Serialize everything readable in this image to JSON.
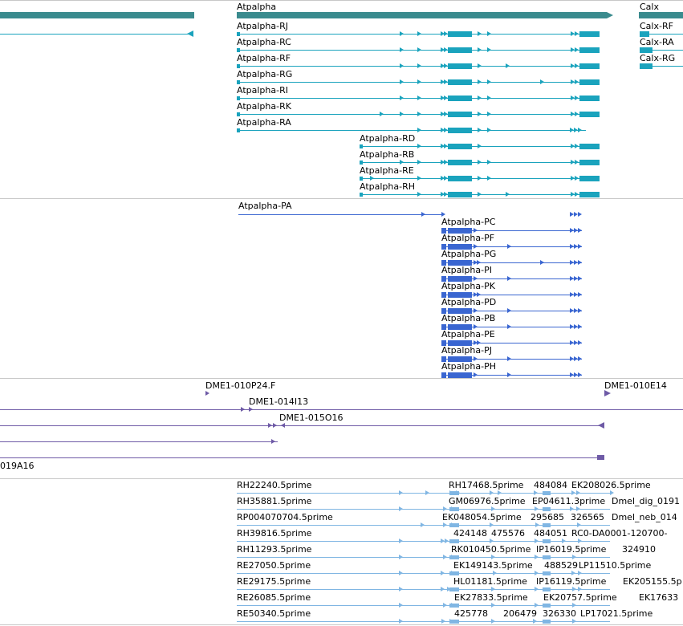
{
  "colors": {
    "gene": "#3a8b8e",
    "transcript": "#1aa3bd",
    "protein": "#3a66d1",
    "clone": "#6e5aa6",
    "est": "#80b6e3",
    "separator": "#c8c8c8"
  },
  "genes": [
    "Atpalpha",
    "Calx"
  ],
  "transcripts": [
    "Atpalpha-RJ",
    "Atpalpha-RC",
    "Atpalpha-RF",
    "Atpalpha-RG",
    "Atpalpha-RI",
    "Atpalpha-RK",
    "Atpalpha-RA",
    "Atpalpha-RD",
    "Atpalpha-RB",
    "Atpalpha-RE",
    "Atpalpha-RH",
    "Calx-RF",
    "Calx-RA",
    "Calx-RG"
  ],
  "proteins": [
    "Atpalpha-PA",
    "Atpalpha-PC",
    "Atpalpha-PF",
    "Atpalpha-PG",
    "Atpalpha-PI",
    "Atpalpha-PK",
    "Atpalpha-PD",
    "Atpalpha-PB",
    "Atpalpha-PE",
    "Atpalpha-PJ",
    "Atpalpha-PH"
  ],
  "clones": [
    "DME1-010P24.F",
    "DME1-010E14",
    "DME1-014I13",
    "DME1-015O16",
    "019A16"
  ],
  "ests": [
    "RH22240.5prime",
    "RH17468.5prime",
    "484084",
    "EK208026.5prime",
    "RH35881.5prime",
    "GM06976.5prime",
    "EP04611.3prime",
    "Dmel_dig_0191",
    "RP004070704.5prime",
    "EK048054.5prime",
    "295685",
    "326565",
    "Dmel_neb_014",
    "RH39816.5prime",
    "424148",
    "475576",
    "484051",
    "RC0-DA0001-120700-",
    "RH11293.5prime",
    "RK010450.5prime",
    "IP16019.5prime",
    "324910",
    "RE27050.5prime",
    "EK149143.5prime",
    "488529",
    "LP11510.5prime",
    "RE29175.5prime",
    "HL01181.5prime",
    "IP16119.5prime",
    "EK205155.5p",
    "RE26085.5prime",
    "EK27833.5prime",
    "EK20757.5prime",
    "EK17633",
    "RE50340.5prime",
    "425778",
    "206479",
    "326330",
    "LP17021.5prime"
  ]
}
